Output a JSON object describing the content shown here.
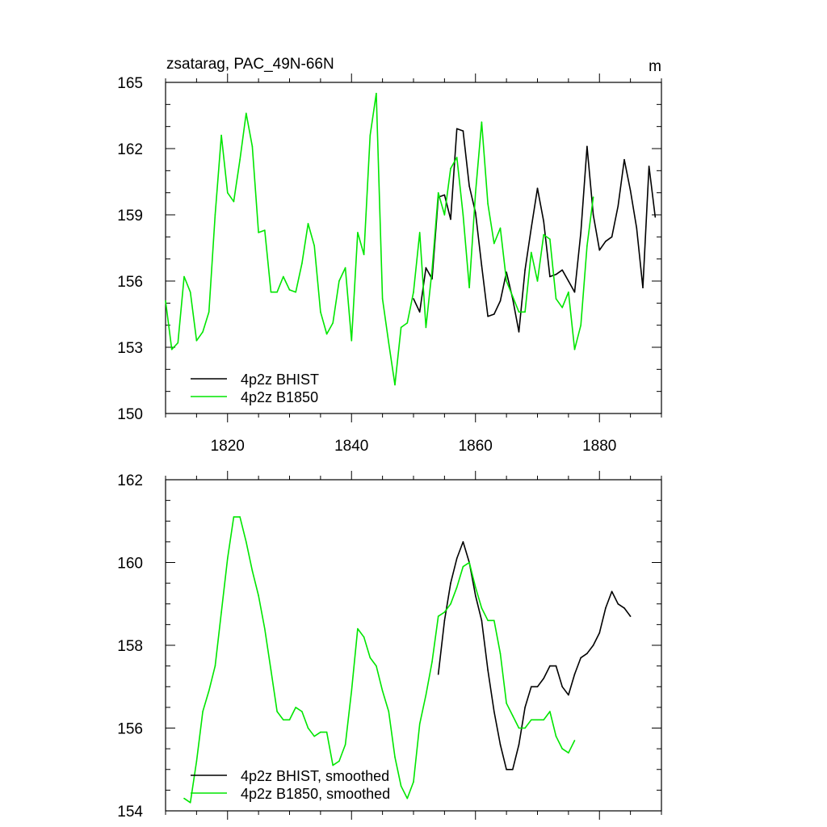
{
  "figure": {
    "title_left": "zsatarag, PAC_49N-66N",
    "title_right": "m"
  },
  "chart_data": [
    {
      "type": "line",
      "name": "raw",
      "xlim": [
        1810,
        1890
      ],
      "ylim": [
        150,
        165
      ],
      "xticks": [
        1820,
        1840,
        1860,
        1880
      ],
      "xtick_labels": [
        "1820",
        "1840",
        "1860",
        "1880"
      ],
      "yticks": [
        150,
        153,
        156,
        159,
        162,
        165
      ],
      "ytick_labels": [
        "150",
        "153",
        "156",
        "159",
        "162",
        "165"
      ],
      "grid": false,
      "legend_position": "bottom-left",
      "series": [
        {
          "name": "4p2z BHIST",
          "color": "#000000",
          "x": [
            1850,
            1851,
            1852,
            1853,
            1854,
            1855,
            1856,
            1857,
            1858,
            1859,
            1860,
            1861,
            1862,
            1863,
            1864,
            1865,
            1866,
            1867,
            1868,
            1869,
            1870,
            1871,
            1872,
            1873,
            1874,
            1875,
            1876,
            1877,
            1878,
            1879,
            1880,
            1881,
            1882,
            1883,
            1884,
            1885,
            1886,
            1887,
            1888,
            1889
          ],
          "y": [
            155.2,
            154.6,
            156.6,
            156.1,
            159.8,
            159.9,
            158.8,
            162.9,
            162.8,
            160.3,
            159.1,
            156.7,
            154.4,
            154.5,
            155.1,
            156.4,
            155.2,
            153.7,
            156.5,
            158.4,
            160.2,
            158.7,
            156.2,
            156.3,
            156.5,
            156.0,
            155.5,
            158.2,
            162.1,
            159.0,
            157.4,
            157.8,
            158.0,
            159.4,
            161.5,
            160.1,
            158.4,
            155.7,
            161.2,
            158.9
          ]
        },
        {
          "name": "4p2z B1850",
          "color": "#00e600",
          "x": [
            1810,
            1811,
            1812,
            1813,
            1814,
            1815,
            1816,
            1817,
            1818,
            1819,
            1820,
            1821,
            1822,
            1823,
            1824,
            1825,
            1826,
            1827,
            1828,
            1829,
            1830,
            1831,
            1832,
            1833,
            1834,
            1835,
            1836,
            1837,
            1838,
            1839,
            1840,
            1841,
            1842,
            1843,
            1844,
            1845,
            1846,
            1847,
            1848,
            1849,
            1850,
            1851,
            1852,
            1853,
            1854,
            1855,
            1856,
            1857,
            1858,
            1859,
            1860,
            1861,
            1862,
            1863,
            1864,
            1865,
            1866,
            1867,
            1868,
            1869,
            1870,
            1871,
            1872,
            1873,
            1874,
            1875,
            1876,
            1877,
            1878,
            1879
          ],
          "y": [
            155.1,
            152.9,
            153.2,
            156.2,
            155.5,
            153.3,
            153.7,
            154.6,
            159.0,
            162.6,
            160.0,
            159.6,
            161.5,
            163.6,
            162.1,
            158.2,
            158.3,
            155.5,
            155.5,
            156.2,
            155.6,
            155.5,
            156.8,
            158.6,
            157.6,
            154.6,
            153.6,
            154.1,
            156.0,
            156.6,
            153.3,
            158.2,
            157.2,
            162.6,
            164.5,
            155.2,
            153.2,
            151.3,
            153.9,
            154.1,
            155.5,
            158.2,
            153.9,
            156.5,
            160.0,
            159.0,
            161.1,
            161.6,
            159.0,
            155.7,
            160.0,
            163.2,
            159.5,
            157.7,
            158.4,
            156.0,
            155.3,
            154.6,
            154.6,
            157.3,
            156.0,
            158.1,
            157.9,
            155.2,
            154.8,
            155.5,
            152.9,
            154.0,
            157.6,
            159.8
          ]
        }
      ]
    },
    {
      "type": "line",
      "name": "smoothed",
      "xlim": [
        1810,
        1890
      ],
      "ylim": [
        154,
        162
      ],
      "xticks": [
        1820,
        1840,
        1860,
        1880
      ],
      "xtick_labels": [],
      "yticks": [
        154,
        156,
        158,
        160,
        162
      ],
      "ytick_labels": [
        "154",
        "156",
        "158",
        "160",
        "162"
      ],
      "grid": false,
      "legend_position": "bottom-left",
      "series": [
        {
          "name": "4p2z BHIST, smoothed",
          "color": "#000000",
          "x": [
            1854,
            1855,
            1856,
            1857,
            1858,
            1859,
            1860,
            1861,
            1862,
            1863,
            1864,
            1865,
            1866,
            1867,
            1868,
            1869,
            1870,
            1871,
            1872,
            1873,
            1874,
            1875,
            1876,
            1877,
            1878,
            1879,
            1880,
            1881,
            1882,
            1883,
            1884,
            1885
          ],
          "y": [
            157.3,
            158.6,
            159.5,
            160.1,
            160.5,
            160.0,
            159.2,
            158.6,
            157.4,
            156.4,
            155.6,
            155.0,
            155.0,
            155.6,
            156.5,
            157.0,
            157.0,
            157.2,
            157.5,
            157.5,
            157.0,
            156.8,
            157.3,
            157.7,
            157.8,
            158.0,
            158.3,
            158.9,
            159.3,
            159.0,
            158.9,
            158.7
          ]
        },
        {
          "name": "4p2z B1850, smoothed",
          "color": "#00e600",
          "x": [
            1813,
            1814,
            1815,
            1816,
            1817,
            1818,
            1819,
            1820,
            1821,
            1822,
            1823,
            1824,
            1825,
            1826,
            1827,
            1828,
            1829,
            1830,
            1831,
            1832,
            1833,
            1834,
            1835,
            1836,
            1837,
            1838,
            1839,
            1840,
            1841,
            1842,
            1843,
            1844,
            1845,
            1846,
            1847,
            1848,
            1849,
            1850,
            1851,
            1852,
            1853,
            1854,
            1855,
            1856,
            1857,
            1858,
            1859,
            1860,
            1861,
            1862,
            1863,
            1864,
            1865,
            1866,
            1867,
            1868,
            1869,
            1870,
            1871,
            1872,
            1873,
            1874,
            1875,
            1876
          ],
          "y": [
            154.3,
            154.2,
            155.2,
            156.4,
            156.9,
            157.5,
            158.8,
            160.1,
            161.1,
            161.1,
            160.5,
            159.8,
            159.2,
            158.4,
            157.4,
            156.4,
            156.2,
            156.2,
            156.5,
            156.4,
            156.0,
            155.8,
            155.9,
            155.9,
            155.1,
            155.2,
            155.6,
            156.9,
            158.4,
            158.2,
            157.7,
            157.5,
            156.9,
            156.4,
            155.3,
            154.6,
            154.3,
            154.7,
            156.1,
            156.8,
            157.6,
            158.7,
            158.8,
            159.0,
            159.4,
            159.9,
            160.0,
            159.4,
            158.9,
            158.6,
            158.6,
            157.8,
            156.6,
            156.3,
            156.0,
            156.0,
            156.2,
            156.2,
            156.2,
            156.4,
            155.8,
            155.5,
            155.4,
            155.7
          ]
        }
      ]
    }
  ]
}
